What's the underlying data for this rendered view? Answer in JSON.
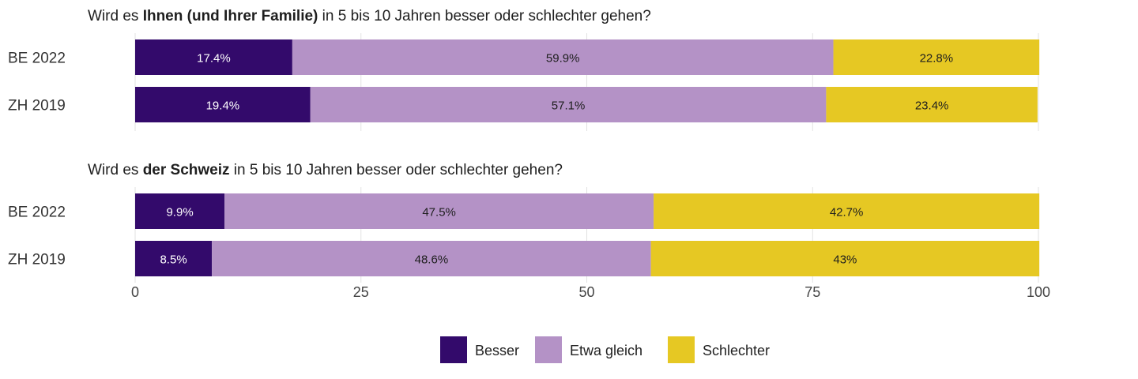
{
  "chart_data": {
    "type": "bar",
    "orientation": "horizontal",
    "stacked": true,
    "xlim": [
      0,
      100
    ],
    "x_ticks": [
      0,
      25,
      50,
      75,
      100
    ],
    "grid": true,
    "legend_position": "bottom-center",
    "colors": {
      "Besser": "#330a6b",
      "Etwa gleich": "#b492c6",
      "Schlechter": "#e6c823"
    },
    "label_colors": {
      "Besser": "#ffffff",
      "Etwa gleich": "#1e1e1e",
      "Schlechter": "#1e1e1e"
    },
    "panels": [
      {
        "title_parts": [
          {
            "text": "Wird es ",
            "bold": false
          },
          {
            "text": "Ihnen (und Ihrer Familie)",
            "bold": true
          },
          {
            "text": " in 5 bis 10 Jahren besser oder schlechter gehen?",
            "bold": false
          }
        ],
        "categories": [
          "BE 2022",
          "ZH 2019"
        ],
        "series": [
          {
            "name": "Besser",
            "values": [
              17.4,
              19.4
            ],
            "labels": [
              "17.4%",
              "19.4%"
            ]
          },
          {
            "name": "Etwa gleich",
            "values": [
              59.9,
              57.1
            ],
            "labels": [
              "59.9%",
              "57.1%"
            ]
          },
          {
            "name": "Schlechter",
            "values": [
              22.8,
              23.4
            ],
            "labels": [
              "22.8%",
              "23.4%"
            ]
          }
        ]
      },
      {
        "title_parts": [
          {
            "text": "Wird es ",
            "bold": false
          },
          {
            "text": "der Schweiz",
            "bold": true
          },
          {
            "text": " in 5 bis 10 Jahren besser oder schlechter gehen?",
            "bold": false
          }
        ],
        "categories": [
          "BE 2022",
          "ZH 2019"
        ],
        "series": [
          {
            "name": "Besser",
            "values": [
              9.9,
              8.5
            ],
            "labels": [
              "9.9%",
              "8.5%"
            ]
          },
          {
            "name": "Etwa gleich",
            "values": [
              47.5,
              48.6
            ],
            "labels": [
              "47.5%",
              "48.6%"
            ]
          },
          {
            "name": "Schlechter",
            "values": [
              42.7,
              43
            ],
            "labels": [
              "42.7%",
              "43%"
            ]
          }
        ]
      }
    ],
    "legend": [
      "Besser",
      "Etwa gleich",
      "Schlechter"
    ]
  }
}
